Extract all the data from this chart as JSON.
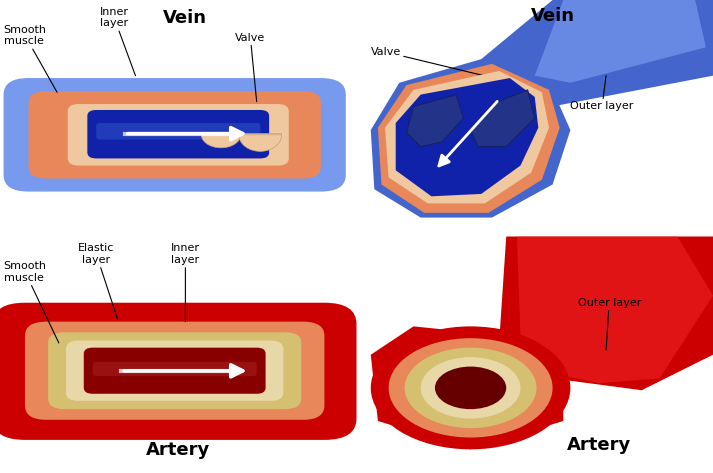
{
  "bg": "#ffffff",
  "vein_blue_light": "#7799ee",
  "vein_blue_mid": "#4466cc",
  "vein_blue_dark": "#1122aa",
  "vein_blue_very_dark": "#0011880",
  "vein_orange": "#e8885a",
  "vein_peach": "#f0c8a0",
  "artery_red_bright": "#ee1111",
  "artery_red_mid": "#cc0000",
  "artery_red_dark": "#880000",
  "artery_orange": "#e8885a",
  "artery_yellow": "#d4c070",
  "artery_peach": "#e8d8a8",
  "text_black": "#000000",
  "valve_dark": "#334488",
  "valve_flap": "#d4a890",
  "title_fs": 13,
  "label_fs": 8,
  "vein_tl": "Vein",
  "vein_tr": "Vein",
  "art_bl": "Artery",
  "art_br": "Artery"
}
